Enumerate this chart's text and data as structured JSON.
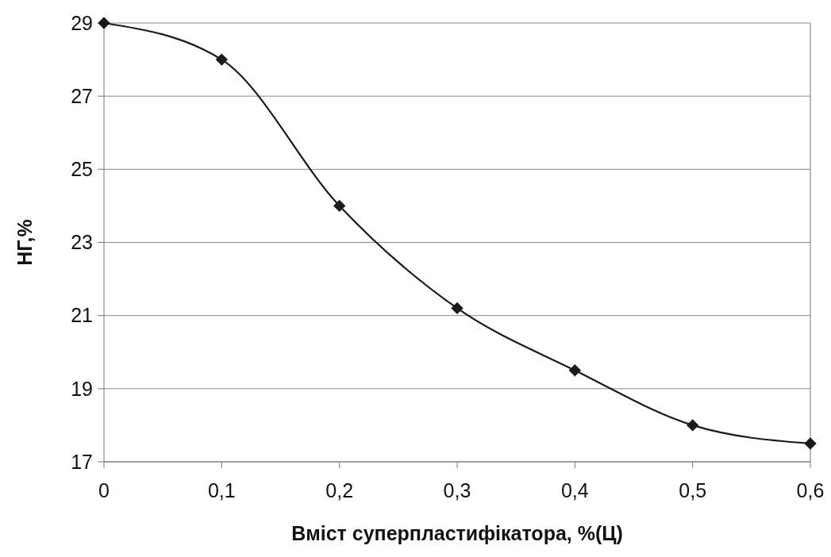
{
  "chart_data": {
    "type": "line",
    "xlabel": "Вміст суперпластифікатора, %(Ц)",
    "ylabel": "НГ,%",
    "x": [
      0,
      0.1,
      0.2,
      0.3,
      0.4,
      0.5,
      0.6
    ],
    "series": [
      {
        "color": "#1a1a1a",
        "values": [
          29,
          28,
          24,
          21.2,
          19.5,
          18,
          17.5
        ]
      }
    ],
    "xlim": [
      0,
      0.6
    ],
    "xticks": [
      0,
      {
        "value": 0.1,
        "label": "0,1"
      },
      {
        "value": 0.2,
        "label": "0,2"
      },
      {
        "value": 0.3,
        "label": "0,3"
      },
      {
        "value": 0.4,
        "label": "0,4"
      },
      {
        "value": 0.5,
        "label": "0,5"
      },
      {
        "value": 0.6,
        "label": "0,6"
      }
    ],
    "ylim": [
      17,
      29
    ],
    "yticks": [
      17,
      19,
      21,
      23,
      25,
      27,
      29
    ],
    "grid": "y",
    "marker": "diamond",
    "line_style": "solid"
  }
}
